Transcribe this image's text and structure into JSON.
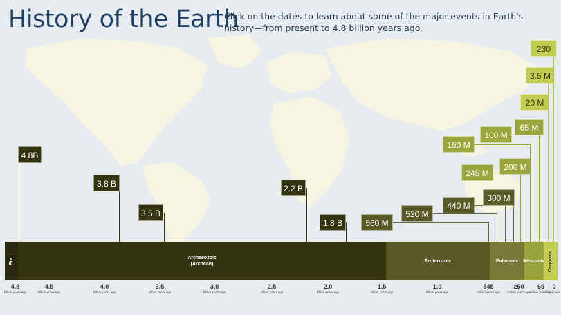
{
  "header": {
    "title": "History of the Earth",
    "subtitle": "Click on the dates to learn about some of the major events in Earth's history—from present to 4.8 billion years ago."
  },
  "colors": {
    "title": "#1f3f63",
    "era_label_bg": "#2a2a12",
    "archaeozoic": "#33330f",
    "proterozoic": "#5a5a28",
    "paleozoic": "#7a7a38",
    "mesozoic": "#9aa63c",
    "cenozoic": "#c3cc52",
    "map_land": "#f6f4e2",
    "map_sea": "#e7ecf0"
  },
  "markers": [
    {
      "label": "4.8B",
      "style": "dark"
    },
    {
      "label": "3.8 B",
      "style": "dark"
    },
    {
      "label": "3.5 B",
      "style": "dark"
    },
    {
      "label": "2.2 B",
      "style": "dark"
    },
    {
      "label": "1.8 B",
      "style": "dark"
    },
    {
      "label": "560 M",
      "style": "olive"
    },
    {
      "label": "520 M",
      "style": "olive"
    },
    {
      "label": "440 M",
      "style": "olive"
    },
    {
      "label": "300 M",
      "style": "olive"
    },
    {
      "label": "245 M",
      "style": "lime"
    },
    {
      "label": "200 M",
      "style": "lime"
    },
    {
      "label": "160 M",
      "style": "lime"
    },
    {
      "label": "100 M",
      "style": "lime"
    },
    {
      "label": "65 M",
      "style": "lime"
    },
    {
      "label": "20 M",
      "style": "yellow"
    },
    {
      "label": "3.5 M",
      "style": "yellow"
    },
    {
      "label": "230",
      "style": "yellow"
    }
  ],
  "eras": [
    {
      "name": "Era",
      "vertical": true
    },
    {
      "name": "Archaeozoic\n(Archean)",
      "vertical": false
    },
    {
      "name": "Proterozoic",
      "vertical": false
    },
    {
      "name": "Paleozoic",
      "vertical": false
    },
    {
      "name": "Mesozoic",
      "vertical": false
    },
    {
      "name": "Cenozoic",
      "vertical": true
    }
  ],
  "ticks": [
    {
      "value": "4.8",
      "unit": "billion years ago"
    },
    {
      "value": "4.5",
      "unit": "billion years ago"
    },
    {
      "value": "4.0",
      "unit": "billion years ago"
    },
    {
      "value": "3.5",
      "unit": "billion years ago"
    },
    {
      "value": "3.0",
      "unit": "billion years ago"
    },
    {
      "value": "2.5",
      "unit": "billion years ago"
    },
    {
      "value": "2.0",
      "unit": "billion years ago"
    },
    {
      "value": "1.5",
      "unit": "billion years ago"
    },
    {
      "value": "1.0",
      "unit": "billion years ago"
    },
    {
      "value": "545",
      "unit": "million years ago"
    },
    {
      "value": "250",
      "unit": "million years ago"
    },
    {
      "value": "65",
      "unit": "million years ago"
    },
    {
      "value": "0",
      "unit": "million years ago"
    }
  ]
}
